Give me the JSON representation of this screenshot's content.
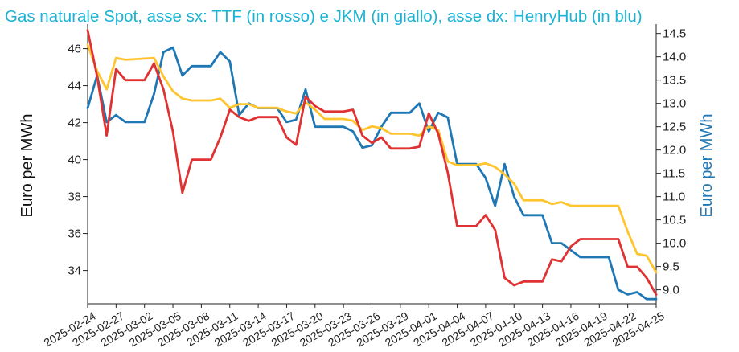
{
  "chart_data": {
    "type": "line",
    "title": "Gas naturale Spot, asse sx: TTF (in rosso) e JKM (in giallo), asse dx: HenryHub (in blu)",
    "ylabel": "Euro per MWh",
    "y2label": "Euro per MWh",
    "ylim": [
      32.2,
      47.2
    ],
    "y2lim": [
      8.7,
      14.65
    ],
    "yticks": [
      34,
      36,
      38,
      40,
      42,
      44,
      46
    ],
    "y2ticks": [
      9.0,
      9.5,
      10.0,
      10.5,
      11.0,
      11.5,
      12.0,
      12.5,
      13.0,
      13.5,
      14.0,
      14.5
    ],
    "y2tick_labels": [
      "9.0",
      "9.5",
      "10.0",
      "10.5",
      "11.0",
      "11.5",
      "12.0",
      "12.5",
      "13.0",
      "13.5",
      "14.0",
      "14.5"
    ],
    "xlim": [
      "2025-02-24",
      "2025-04-25"
    ],
    "xticks": [
      "2025-02-24",
      "2025-02-27",
      "2025-03-02",
      "2025-03-05",
      "2025-03-08",
      "2025-03-11",
      "2025-03-14",
      "2025-03-17",
      "2025-03-20",
      "2025-03-23",
      "2025-03-26",
      "2025-03-29",
      "2025-04-01",
      "2025-04-04",
      "2025-04-07",
      "2025-04-10",
      "2025-04-13",
      "2025-04-16",
      "2025-04-19",
      "2025-04-22",
      "2025-04-25"
    ],
    "grid": false,
    "colors": {
      "title": "#1ab3d3",
      "TTF": "#e03232",
      "JKM": "#ffc52e",
      "HenryHub": "#1f77b4",
      "axis": "#222222"
    },
    "series": [
      {
        "axis": "left",
        "points": [
          [
            "2025-02-24",
            47.0
          ],
          [
            "2025-02-25",
            44.5
          ],
          [
            "2025-02-26",
            41.3
          ],
          [
            "2025-02-27",
            44.9
          ],
          [
            "2025-02-28",
            44.3
          ],
          [
            "2025-03-02",
            44.3
          ],
          [
            "2025-03-03",
            45.2
          ],
          [
            "2025-03-04",
            43.8
          ],
          [
            "2025-03-05",
            41.5
          ],
          [
            "2025-03-06",
            38.2
          ],
          [
            "2025-03-07",
            40.0
          ],
          [
            "2025-03-09",
            40.0
          ],
          [
            "2025-03-10",
            41.2
          ],
          [
            "2025-03-11",
            42.7
          ],
          [
            "2025-03-12",
            42.3
          ],
          [
            "2025-03-13",
            42.1
          ],
          [
            "2025-03-14",
            42.3
          ],
          [
            "2025-03-16",
            42.3
          ],
          [
            "2025-03-17",
            41.2
          ],
          [
            "2025-03-18",
            40.8
          ],
          [
            "2025-03-19",
            43.4
          ],
          [
            "2025-03-20",
            42.9
          ],
          [
            "2025-03-21",
            42.6
          ],
          [
            "2025-03-23",
            42.6
          ],
          [
            "2025-03-24",
            42.7
          ],
          [
            "2025-03-25",
            41.3
          ],
          [
            "2025-03-26",
            40.9
          ],
          [
            "2025-03-27",
            41.2
          ],
          [
            "2025-03-28",
            40.6
          ],
          [
            "2025-03-30",
            40.6
          ],
          [
            "2025-03-31",
            40.7
          ],
          [
            "2025-04-01",
            42.5
          ],
          [
            "2025-04-02",
            41.4
          ],
          [
            "2025-04-03",
            39.3
          ],
          [
            "2025-04-04",
            36.4
          ],
          [
            "2025-04-06",
            36.4
          ],
          [
            "2025-04-07",
            37.0
          ],
          [
            "2025-04-08",
            36.2
          ],
          [
            "2025-04-09",
            33.6
          ],
          [
            "2025-04-10",
            33.2
          ],
          [
            "2025-04-11",
            33.4
          ],
          [
            "2025-04-13",
            33.4
          ],
          [
            "2025-04-14",
            34.6
          ],
          [
            "2025-04-15",
            34.5
          ],
          [
            "2025-04-16",
            35.3
          ],
          [
            "2025-04-17",
            35.7
          ],
          [
            "2025-04-21",
            35.7
          ],
          [
            "2025-04-22",
            34.2
          ],
          [
            "2025-04-23",
            34.2
          ],
          [
            "2025-04-24",
            33.6
          ],
          [
            "2025-04-25",
            32.7
          ]
        ]
      },
      {
        "axis": "left",
        "points": [
          [
            "2025-02-24",
            46.2
          ],
          [
            "2025-02-25",
            44.8
          ],
          [
            "2025-02-26",
            43.8
          ],
          [
            "2025-02-27",
            45.5
          ],
          [
            "2025-02-28",
            45.4
          ],
          [
            "2025-03-03",
            45.5
          ],
          [
            "2025-03-04",
            44.5
          ],
          [
            "2025-03-05",
            43.7
          ],
          [
            "2025-03-06",
            43.3
          ],
          [
            "2025-03-07",
            43.2
          ],
          [
            "2025-03-09",
            43.2
          ],
          [
            "2025-03-10",
            43.3
          ],
          [
            "2025-03-11",
            42.8
          ],
          [
            "2025-03-12",
            43.0
          ],
          [
            "2025-03-13",
            43.0
          ],
          [
            "2025-03-14",
            42.8
          ],
          [
            "2025-03-16",
            42.8
          ],
          [
            "2025-03-17",
            42.6
          ],
          [
            "2025-03-18",
            42.5
          ],
          [
            "2025-03-19",
            43.1
          ],
          [
            "2025-03-20",
            42.7
          ],
          [
            "2025-03-21",
            42.2
          ],
          [
            "2025-03-23",
            42.2
          ],
          [
            "2025-03-24",
            42.1
          ],
          [
            "2025-03-25",
            41.6
          ],
          [
            "2025-03-26",
            41.8
          ],
          [
            "2025-03-27",
            41.7
          ],
          [
            "2025-03-28",
            41.4
          ],
          [
            "2025-03-30",
            41.4
          ],
          [
            "2025-03-31",
            41.3
          ],
          [
            "2025-04-01",
            41.8
          ],
          [
            "2025-04-02",
            41.6
          ],
          [
            "2025-04-03",
            39.9
          ],
          [
            "2025-04-04",
            39.7
          ],
          [
            "2025-04-06",
            39.7
          ],
          [
            "2025-04-07",
            39.8
          ],
          [
            "2025-04-08",
            39.6
          ],
          [
            "2025-04-09",
            39.2
          ],
          [
            "2025-04-10",
            38.7
          ],
          [
            "2025-04-11",
            37.8
          ],
          [
            "2025-04-13",
            37.8
          ],
          [
            "2025-04-14",
            37.6
          ],
          [
            "2025-04-15",
            37.7
          ],
          [
            "2025-04-16",
            37.5
          ],
          [
            "2025-04-21",
            37.5
          ],
          [
            "2025-04-22",
            36.1
          ],
          [
            "2025-04-23",
            34.9
          ],
          [
            "2025-04-24",
            34.8
          ],
          [
            "2025-04-25",
            33.9
          ]
        ]
      },
      {
        "axis": "right",
        "points": [
          [
            "2025-02-24",
            12.9
          ],
          [
            "2025-02-25",
            13.6
          ],
          [
            "2025-02-26",
            12.6
          ],
          [
            "2025-02-27",
            12.75
          ],
          [
            "2025-02-28",
            12.6
          ],
          [
            "2025-03-02",
            12.6
          ],
          [
            "2025-03-03",
            13.2
          ],
          [
            "2025-03-04",
            14.1
          ],
          [
            "2025-03-05",
            14.2
          ],
          [
            "2025-03-06",
            13.6
          ],
          [
            "2025-03-07",
            13.8
          ],
          [
            "2025-03-09",
            13.8
          ],
          [
            "2025-03-10",
            14.1
          ],
          [
            "2025-03-11",
            13.9
          ],
          [
            "2025-03-12",
            12.75
          ],
          [
            "2025-03-13",
            13.0
          ],
          [
            "2025-03-14",
            12.9
          ],
          [
            "2025-03-16",
            12.9
          ],
          [
            "2025-03-17",
            12.6
          ],
          [
            "2025-03-18",
            12.65
          ],
          [
            "2025-03-19",
            13.3
          ],
          [
            "2025-03-20",
            12.5
          ],
          [
            "2025-03-23",
            12.5
          ],
          [
            "2025-03-24",
            12.4
          ],
          [
            "2025-03-25",
            12.05
          ],
          [
            "2025-03-26",
            12.1
          ],
          [
            "2025-03-27",
            12.5
          ],
          [
            "2025-03-28",
            12.8
          ],
          [
            "2025-03-30",
            12.8
          ],
          [
            "2025-03-31",
            13.0
          ],
          [
            "2025-04-01",
            12.4
          ],
          [
            "2025-04-02",
            12.8
          ],
          [
            "2025-04-03",
            12.7
          ],
          [
            "2025-04-04",
            11.7
          ],
          [
            "2025-04-06",
            11.7
          ],
          [
            "2025-04-07",
            11.4
          ],
          [
            "2025-04-08",
            10.8
          ],
          [
            "2025-04-09",
            11.7
          ],
          [
            "2025-04-10",
            11.0
          ],
          [
            "2025-04-11",
            10.6
          ],
          [
            "2025-04-13",
            10.6
          ],
          [
            "2025-04-14",
            10.0
          ],
          [
            "2025-04-15",
            10.0
          ],
          [
            "2025-04-16",
            9.85
          ],
          [
            "2025-04-17",
            9.7
          ],
          [
            "2025-04-20",
            9.7
          ],
          [
            "2025-04-21",
            9.0
          ],
          [
            "2025-04-22",
            8.9
          ],
          [
            "2025-04-23",
            8.95
          ],
          [
            "2025-04-24",
            8.8
          ],
          [
            "2025-04-25",
            8.8
          ]
        ]
      }
    ]
  }
}
